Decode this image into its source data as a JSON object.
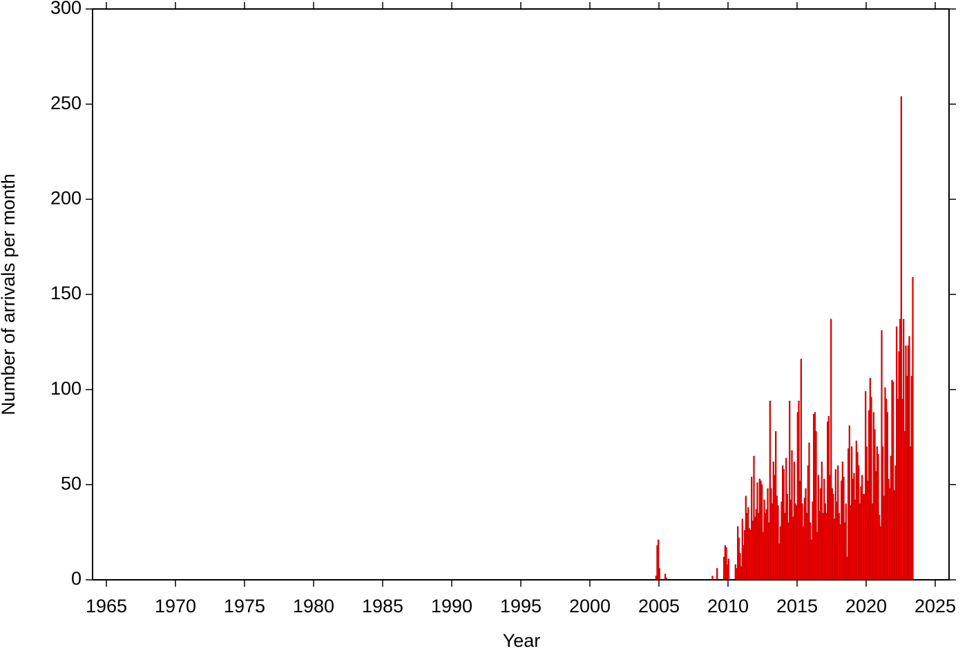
{
  "chart_data": {
    "type": "histogram",
    "xlabel": "Year",
    "ylabel": "Number of arrivals per month",
    "color": "#ff0000",
    "edgecolor": "#b00000",
    "xlim": [
      1964,
      2026
    ],
    "xticks": [
      1965,
      1970,
      1975,
      1980,
      1985,
      1990,
      1995,
      2000,
      2005,
      2010,
      2015,
      2020,
      2025
    ],
    "ylim": [
      0,
      300
    ],
    "yticks": [
      0,
      50,
      100,
      150,
      200,
      250,
      300
    ],
    "grid": false,
    "bins": [
      2004.5,
      2004.583,
      2004.667,
      2004.75,
      2004.833,
      2004.917,
      2005.0,
      2005.083,
      2005.167,
      2005.25,
      2005.333,
      2005.417,
      2005.5,
      2005.583,
      2005.667,
      2005.75,
      2005.833,
      2005.917,
      2006.0,
      2006.083,
      2006.167,
      2006.25,
      2006.333,
      2006.417,
      2006.5,
      2006.583,
      2006.667,
      2006.75,
      2006.833,
      2006.917,
      2007.0,
      2007.083,
      2007.167,
      2007.25,
      2007.333,
      2007.417,
      2007.5,
      2007.583,
      2007.667,
      2007.75,
      2007.833,
      2007.917,
      2008.0,
      2008.083,
      2008.167,
      2008.25,
      2008.333,
      2008.417,
      2008.5,
      2008.583,
      2008.667,
      2008.75,
      2008.833,
      2008.917,
      2009.0,
      2009.083,
      2009.167,
      2009.25,
      2009.333,
      2009.417,
      2009.5,
      2009.583,
      2009.667,
      2009.75,
      2009.833,
      2009.917,
      2010.0,
      2010.083,
      2010.167,
      2010.25,
      2010.333,
      2010.417,
      2010.5,
      2010.583,
      2010.667,
      2010.75,
      2010.833,
      2010.917,
      2011.0,
      2011.083,
      2011.167,
      2011.25,
      2011.333,
      2011.417,
      2011.5,
      2011.583,
      2011.667,
      2011.75,
      2011.833,
      2011.917,
      2012.0,
      2012.083,
      2012.167,
      2012.25,
      2012.333,
      2012.417,
      2012.5,
      2012.583,
      2012.667,
      2012.75,
      2012.833,
      2012.917,
      2013.0,
      2013.083,
      2013.167,
      2013.25,
      2013.333,
      2013.417,
      2013.5,
      2013.583,
      2013.667,
      2013.75,
      2013.833,
      2013.917,
      2014.0,
      2014.083,
      2014.167,
      2014.25,
      2014.333,
      2014.417,
      2014.5,
      2014.583,
      2014.667,
      2014.75,
      2014.833,
      2014.917,
      2015.0,
      2015.083,
      2015.167,
      2015.25,
      2015.333,
      2015.417,
      2015.5,
      2015.583,
      2015.667,
      2015.75,
      2015.833,
      2015.917,
      2016.0,
      2016.083,
      2016.167,
      2016.25,
      2016.333,
      2016.417,
      2016.5,
      2016.583,
      2016.667,
      2016.75,
      2016.833,
      2016.917,
      2017.0,
      2017.083,
      2017.167,
      2017.25,
      2017.333,
      2017.417,
      2017.5,
      2017.583,
      2017.667,
      2017.75,
      2017.833,
      2017.917,
      2018.0,
      2018.083,
      2018.167,
      2018.25,
      2018.333,
      2018.417,
      2018.5,
      2018.583,
      2018.667,
      2018.75,
      2018.833,
      2018.917,
      2019.0,
      2019.083,
      2019.167,
      2019.25,
      2019.333,
      2019.417,
      2019.5,
      2019.583,
      2019.667,
      2019.75,
      2019.833,
      2019.917,
      2020.0,
      2020.083,
      2020.167,
      2020.25,
      2020.333,
      2020.417,
      2020.5,
      2020.583,
      2020.667,
      2020.75,
      2020.833,
      2020.917,
      2021.0,
      2021.083,
      2021.167,
      2021.25,
      2021.333,
      2021.417,
      2021.5,
      2021.583,
      2021.667,
      2021.75,
      2021.833,
      2021.917,
      2022.0,
      2022.083,
      2022.167,
      2022.25,
      2022.333,
      2022.417,
      2022.5,
      2022.583,
      2022.667,
      2022.75,
      2022.833,
      2022.917,
      2023.0,
      2023.083,
      2023.167,
      2023.25,
      2023.333,
      2023.417
    ],
    "counts": [
      0,
      0,
      0,
      2,
      18,
      21,
      6,
      0,
      0,
      0,
      0,
      3,
      1,
      0,
      0,
      0,
      0,
      0,
      0,
      0,
      0,
      0,
      0,
      0,
      0,
      0,
      0,
      0,
      0,
      0,
      0,
      0,
      0,
      0,
      0,
      0,
      0,
      0,
      0,
      0,
      0,
      0,
      0,
      0,
      0,
      0,
      0,
      0,
      0,
      0,
      0,
      0,
      2,
      0,
      0,
      0,
      6,
      0,
      0,
      0,
      0,
      0,
      12,
      18,
      17,
      8,
      11,
      0,
      0,
      0,
      0,
      0,
      8,
      6,
      28,
      22,
      14,
      7,
      32,
      18,
      26,
      44,
      35,
      38,
      27,
      26,
      54,
      31,
      65,
      33,
      37,
      51,
      35,
      53,
      52,
      50,
      25,
      42,
      35,
      37,
      48,
      30,
      94,
      48,
      40,
      62,
      55,
      78,
      44,
      39,
      19,
      28,
      41,
      60,
      58,
      35,
      64,
      45,
      30,
      94,
      42,
      68,
      33,
      62,
      40,
      39,
      88,
      94,
      52,
      116,
      40,
      28,
      43,
      48,
      35,
      60,
      72,
      30,
      21,
      41,
      87,
      88,
      78,
      25,
      55,
      36,
      48,
      62,
      35,
      53,
      40,
      35,
      83,
      86,
      55,
      137,
      48,
      45,
      32,
      58,
      41,
      60,
      35,
      29,
      52,
      62,
      54,
      30,
      40,
      12,
      69,
      81,
      39,
      70,
      53,
      56,
      42,
      73,
      67,
      60,
      40,
      49,
      55,
      45,
      45,
      99,
      70,
      52,
      89,
      106,
      96,
      40,
      88,
      79,
      57,
      70,
      66,
      34,
      28,
      131,
      70,
      44,
      101,
      95,
      88,
      53,
      48,
      65,
      105,
      104,
      47,
      60,
      133,
      95,
      120,
      137,
      254,
      95,
      137,
      78,
      123,
      107,
      123,
      128,
      70,
      107,
      159
    ]
  }
}
